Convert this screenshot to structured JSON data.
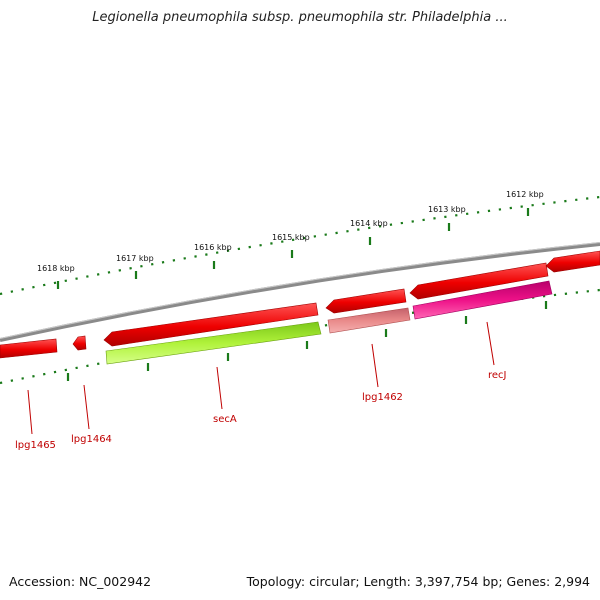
{
  "title": "Legionella pneumophila subsp. pneumophila str. Philadelphia ...",
  "footer": {
    "accession": "Accession: NC_002942",
    "summary": "Topology: circular; Length: 3,397,754 bp; Genes: 2,994"
  },
  "scale_labels": [
    {
      "label": "1618 kbp"
    },
    {
      "label": "1617 kbp"
    },
    {
      "label": "1616 kbp"
    },
    {
      "label": "1615 kbp"
    },
    {
      "label": "1614 kbp"
    },
    {
      "label": "1613 kbp"
    },
    {
      "label": "1612 kbp"
    }
  ],
  "gene_labels": [
    {
      "name": "lpg1465"
    },
    {
      "name": "lpg1464"
    },
    {
      "name": "secA"
    },
    {
      "name": "lpg1462"
    },
    {
      "name": "recJ"
    }
  ],
  "colors": {
    "backbone": "#7f7f7f",
    "cds": "#ee0000",
    "secA": "#a8ee22",
    "lpg1462_inner": "#e78080",
    "recJ": "#ee1188",
    "tick": "#1a7a1a",
    "label": "#c00000"
  }
}
